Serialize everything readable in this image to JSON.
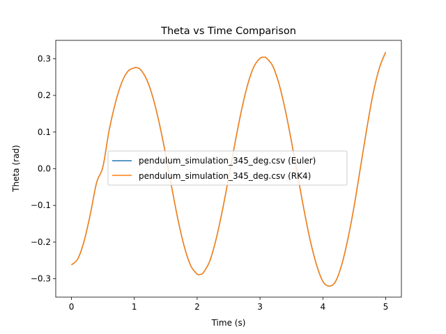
{
  "chart_data": {
    "type": "line",
    "title": "Theta vs Time Comparison",
    "xlabel": "Time (s)",
    "ylabel": "Theta (rad)",
    "xlim": [
      -0.25,
      5.25
    ],
    "ylim": [
      -0.35,
      0.35
    ],
    "xticks": [
      0,
      1,
      2,
      3,
      4,
      5
    ],
    "yticks": [
      -0.3,
      -0.2,
      -0.1,
      0.0,
      0.1,
      0.2,
      0.3
    ],
    "xtick_labels": [
      "0",
      "1",
      "2",
      "3",
      "4",
      "5"
    ],
    "ytick_labels": [
      "−0.3",
      "−0.2",
      "−0.1",
      "0.0",
      "0.1",
      "0.2",
      "0.3"
    ],
    "grid": false,
    "legend_position": "center-left",
    "series": [
      {
        "name": "pendulum_simulation_345_deg.csv (Euler)",
        "color": "#1f77b4",
        "x": [
          0.0,
          0.1,
          0.2,
          0.3,
          0.4,
          0.5,
          0.6,
          0.7,
          0.8,
          0.9,
          1.0,
          1.03,
          1.1,
          1.2,
          1.3,
          1.4,
          1.5,
          1.6,
          1.7,
          1.8,
          1.9,
          2.0,
          2.05,
          2.1,
          2.2,
          2.3,
          2.4,
          2.5,
          2.6,
          2.7,
          2.8,
          2.9,
          3.0,
          3.07,
          3.1,
          3.2,
          3.3,
          3.4,
          3.5,
          3.6,
          3.7,
          3.8,
          3.9,
          4.0,
          4.1,
          4.2,
          4.3,
          4.4,
          4.5,
          4.6,
          4.7,
          4.8,
          4.9,
          5.0
        ],
        "y": [
          -0.262,
          -0.246,
          -0.198,
          -0.124,
          -0.038,
          0.005,
          0.105,
          0.18,
          0.235,
          0.266,
          0.275,
          0.276,
          0.27,
          0.242,
          0.192,
          0.122,
          0.038,
          -0.055,
          -0.143,
          -0.215,
          -0.265,
          -0.287,
          -0.288,
          -0.283,
          -0.252,
          -0.193,
          -0.115,
          -0.025,
          0.068,
          0.155,
          0.227,
          0.277,
          0.301,
          0.304,
          0.302,
          0.281,
          0.233,
          0.162,
          0.075,
          -0.018,
          -0.112,
          -0.196,
          -0.262,
          -0.307,
          -0.32,
          -0.308,
          -0.262,
          -0.19,
          -0.1,
          0.005,
          0.11,
          0.205,
          0.275,
          0.318
        ]
      },
      {
        "name": "pendulum_simulation_345_deg.csv (RK4)",
        "color": "#ff7f0e",
        "x": [
          0.0,
          0.1,
          0.2,
          0.3,
          0.4,
          0.5,
          0.6,
          0.7,
          0.8,
          0.9,
          1.0,
          1.03,
          1.1,
          1.2,
          1.3,
          1.4,
          1.5,
          1.6,
          1.7,
          1.8,
          1.9,
          2.0,
          2.05,
          2.1,
          2.2,
          2.3,
          2.4,
          2.5,
          2.6,
          2.7,
          2.8,
          2.9,
          3.0,
          3.07,
          3.1,
          3.2,
          3.3,
          3.4,
          3.5,
          3.6,
          3.7,
          3.8,
          3.9,
          4.0,
          4.1,
          4.2,
          4.3,
          4.4,
          4.5,
          4.6,
          4.7,
          4.8,
          4.9,
          5.0
        ],
        "y": [
          -0.262,
          -0.246,
          -0.198,
          -0.124,
          -0.038,
          0.005,
          0.105,
          0.18,
          0.235,
          0.266,
          0.275,
          0.276,
          0.27,
          0.242,
          0.192,
          0.122,
          0.038,
          -0.055,
          -0.143,
          -0.215,
          -0.265,
          -0.287,
          -0.288,
          -0.283,
          -0.252,
          -0.193,
          -0.115,
          -0.025,
          0.068,
          0.155,
          0.227,
          0.277,
          0.301,
          0.304,
          0.302,
          0.281,
          0.233,
          0.162,
          0.075,
          -0.018,
          -0.112,
          -0.196,
          -0.262,
          -0.307,
          -0.32,
          -0.308,
          -0.262,
          -0.19,
          -0.1,
          0.005,
          0.11,
          0.205,
          0.275,
          0.318
        ]
      }
    ]
  }
}
